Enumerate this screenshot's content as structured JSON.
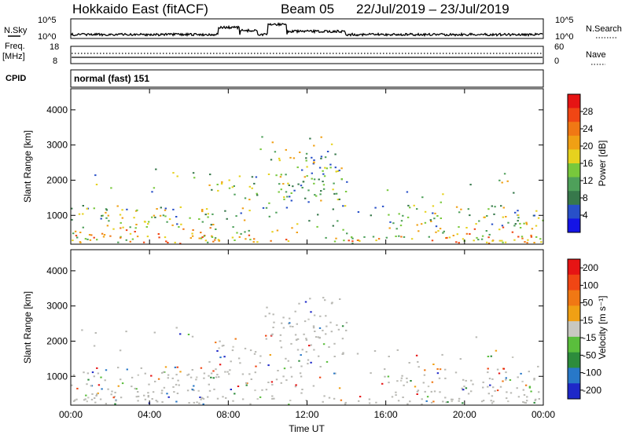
{
  "header": {
    "station": "Hokkaido East (fitACF)",
    "beam": "Beam 05",
    "date_range": "22/Jul/2019 – 23/Jul/2019"
  },
  "status_panels": {
    "nsky_label": "N.Sky",
    "nsearch_label": "N.Search",
    "noise_ticks_left": [
      "10^5",
      "10^0"
    ],
    "noise_ticks_right": [
      "10^5",
      "10^0"
    ],
    "freq_label": "Freq.",
    "freq_unit": "[MHz]",
    "freq_ticks": [
      "18",
      "8"
    ],
    "nave_label": "Nave",
    "nave_ticks": [
      "60",
      "0"
    ],
    "cpid_label": "CPID",
    "cpid_value": "normal (fast) 151"
  },
  "chart_data": [
    {
      "type": "heatmap",
      "name": "power",
      "ylabel": "Slant Range [km]",
      "xlabel": "",
      "ylim": [
        180,
        4600
      ],
      "xlim_hours": [
        0,
        24
      ],
      "y_ticks": [
        "1000",
        "2000",
        "3000",
        "4000"
      ],
      "colorbar": {
        "label": "Power [dB]",
        "ticks": [
          "4",
          "8",
          "12",
          "16",
          "20",
          "24",
          "28"
        ],
        "colors": [
          "#1414e6",
          "#2850c8",
          "#37784b",
          "#4ea05a",
          "#78c83c",
          "#e6d21e",
          "#f0a014",
          "#f07814",
          "#f04614",
          "#e61414"
        ]
      }
    },
    {
      "type": "heatmap",
      "name": "velocity",
      "ylabel": "Slant Range [km]",
      "xlabel": "Time UT",
      "ylim": [
        180,
        4600
      ],
      "xlim_hours": [
        0,
        24
      ],
      "y_ticks": [
        "1000",
        "2000",
        "3000",
        "4000"
      ],
      "x_ticks": [
        "00:00",
        "04:00",
        "08:00",
        "12:00",
        "16:00",
        "20:00",
        "00:00"
      ],
      "colorbar": {
        "label": "Velocity [m s⁻¹]",
        "ticks": [
          "200",
          "100",
          "50",
          "15",
          "-15",
          "-50",
          "-100",
          "-200"
        ],
        "colors": [
          "#1e28c8",
          "#2878c8",
          "#2d8c3c",
          "#5abe3c",
          "#c8c8c0",
          "#f0a014",
          "#f07814",
          "#f04614",
          "#e61414"
        ]
      }
    }
  ],
  "colors": {
    "axis": "#000000",
    "ground_scatter": "#b9b9b4"
  }
}
